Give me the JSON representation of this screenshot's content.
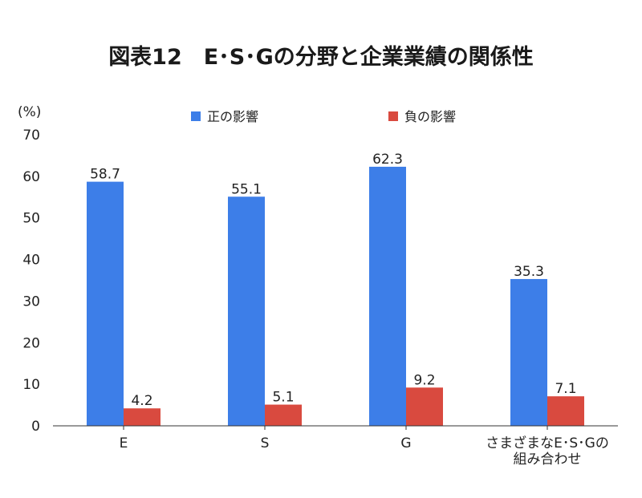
{
  "chart_data": {
    "type": "bar",
    "title": "図表12　E･S･Gの分野と企業業績の関係性",
    "ylabel": "(%)",
    "ylim": [
      0,
      70
    ],
    "yticks": [
      0,
      10,
      20,
      30,
      40,
      50,
      60,
      70
    ],
    "categories": [
      [
        "E"
      ],
      [
        "S"
      ],
      [
        "G"
      ],
      [
        "さまざまなE･S･Gの",
        "組み合わせ"
      ]
    ],
    "series": [
      {
        "name": "正の影響",
        "color": "#3d7ee8",
        "values": [
          58.7,
          55.1,
          62.3,
          35.3
        ],
        "labels": [
          "58.7",
          "55.1",
          "62.3",
          "35.3"
        ]
      },
      {
        "name": "負の影響",
        "color": "#d94a3f",
        "values": [
          4.2,
          5.1,
          9.2,
          7.1
        ],
        "labels": [
          "4.2",
          "5.1",
          "9.2",
          "7.1"
        ]
      }
    ],
    "legend_position": "top"
  }
}
